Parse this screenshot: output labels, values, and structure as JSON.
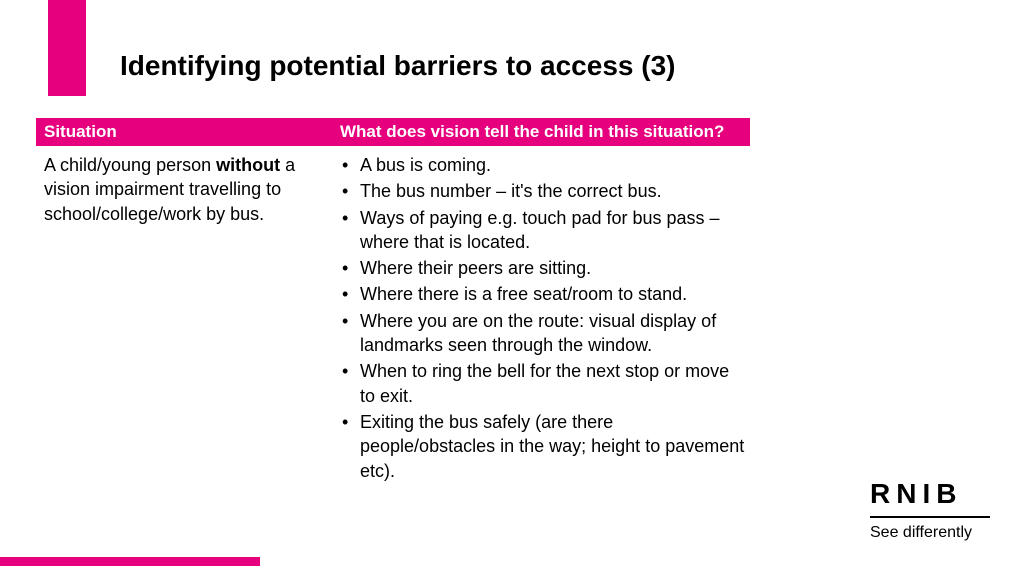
{
  "title": "Identifying potential barriers to access (3)",
  "colors": {
    "accent": "#e6007e",
    "background": "#ffffff",
    "text": "#000000",
    "header_text": "#ffffff"
  },
  "typography": {
    "title_fontsize": 28,
    "title_weight": "bold",
    "body_fontsize": 18,
    "header_fontsize": 17
  },
  "table": {
    "headers": {
      "col1": "Situation",
      "col2": "What does vision tell the child in this situation?"
    },
    "row": {
      "situation_pre": "A child/young person ",
      "situation_bold": "without",
      "situation_post": " a vision impairment travelling to school/college/work by bus.",
      "bullets": [
        "A bus is coming.",
        "The bus number – it's the correct bus.",
        "Ways of paying e.g. touch pad for bus pass – where that is located.",
        "Where their peers are sitting.",
        "Where there is a free seat/room to stand.",
        "Where you are on the route: visual display of landmarks seen through the window.",
        "When to ring the bell for the next stop or move to exit.",
        "Exiting the bus safely (are there people/obstacles in the way; height to pavement etc)."
      ]
    }
  },
  "logo": {
    "main": "RNIB",
    "tagline": "See differently"
  }
}
